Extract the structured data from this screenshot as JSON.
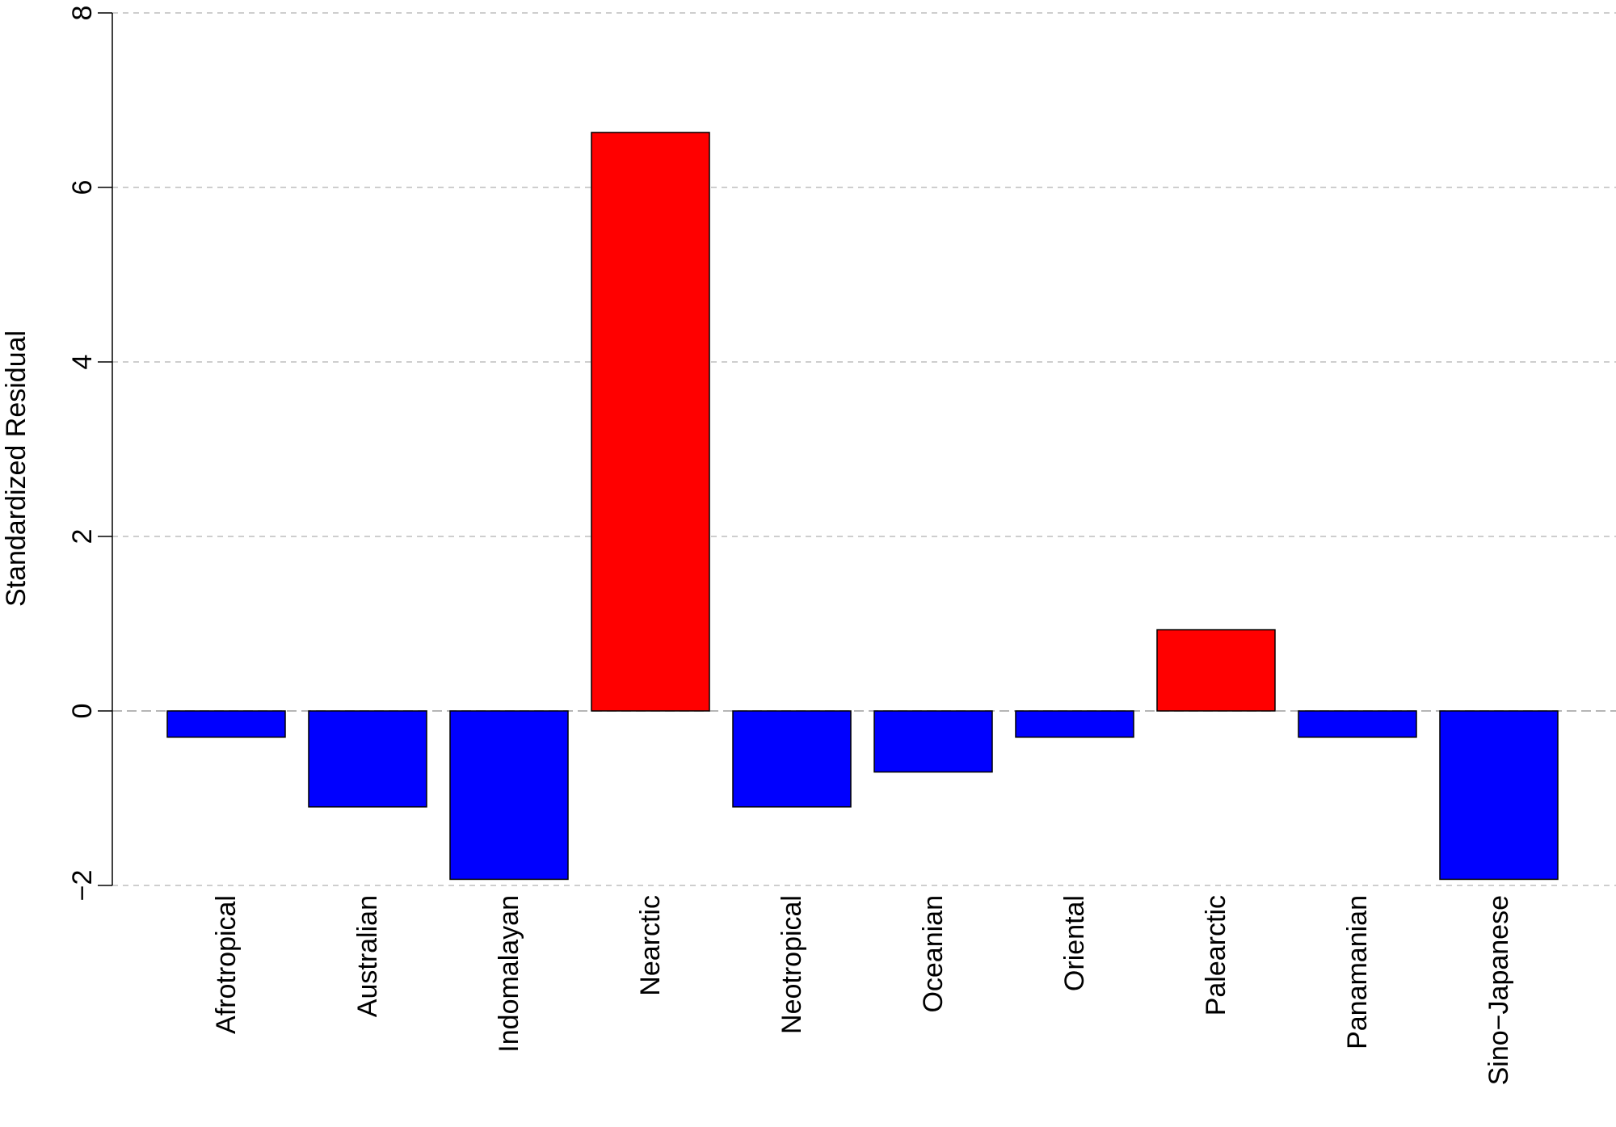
{
  "chart_data": {
    "type": "bar",
    "title": "",
    "xlabel": "",
    "ylabel": "Standardized Residual",
    "categories": [
      "Afrotropical",
      "Australian",
      "Indomalayan",
      "Nearctic",
      "Neotropical",
      "Oceanian",
      "Oriental",
      "Palearctic",
      "Panamanian",
      "Sino−Japanese"
    ],
    "values": [
      -0.3,
      -1.1,
      -1.93,
      6.63,
      -1.1,
      -0.7,
      -0.3,
      0.93,
      -0.3,
      -1.93
    ],
    "ylim": [
      -2,
      8
    ],
    "yticks": [
      -2,
      0,
      2,
      4,
      6,
      8
    ],
    "ytick_labels": [
      "−2",
      "0",
      "2",
      "4",
      "6",
      "8"
    ],
    "grid": true,
    "colors": {
      "positive": "#ff0000",
      "negative": "#0000ff"
    }
  }
}
